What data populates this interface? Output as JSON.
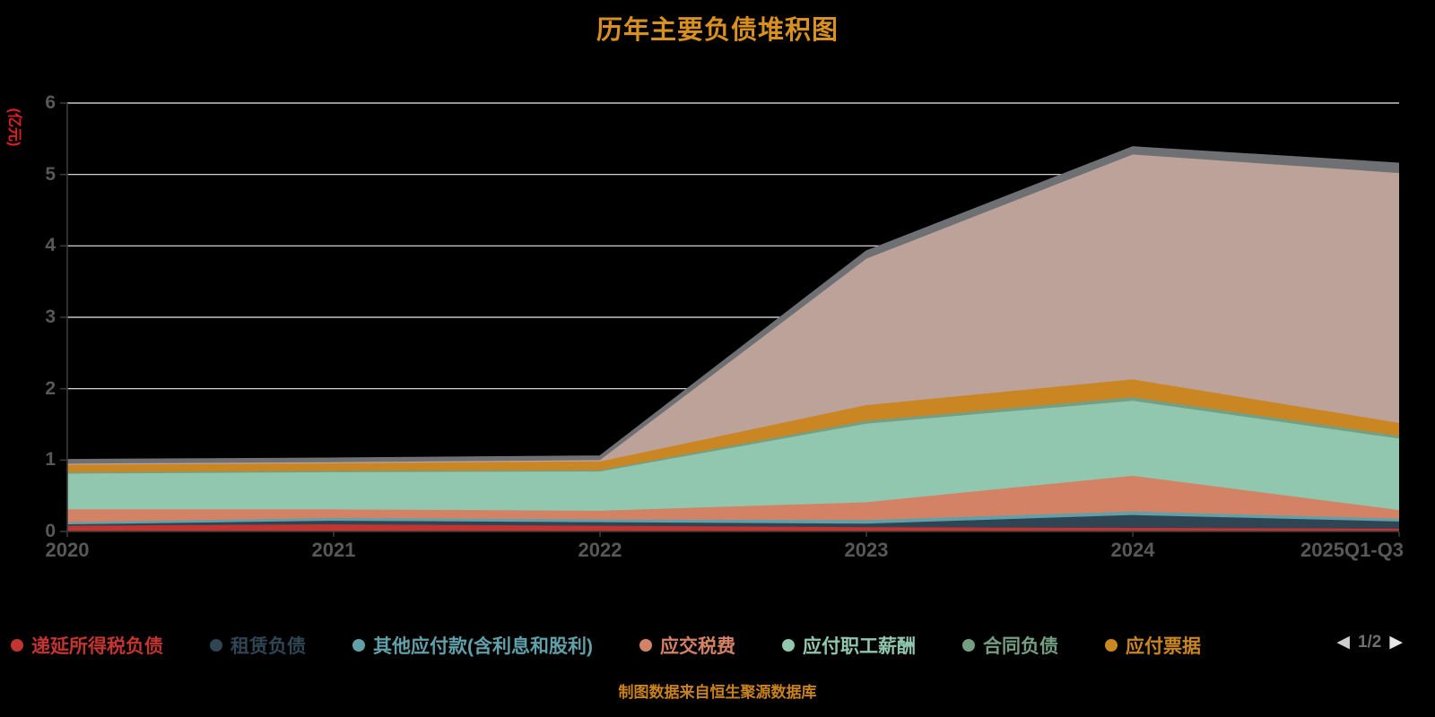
{
  "title": "历年主要负债堆积图",
  "caption": "制图数据来自恒生聚源数据库",
  "colors": {
    "background": "#000000",
    "title": "#d89020",
    "caption": "#c8821e",
    "axis_label": "#585858",
    "grid_line": "#ececec",
    "axis_line": "#3a3a3a",
    "y_axis_name": "#e02020"
  },
  "y_axis": {
    "name": "(亿元)",
    "ticks": [
      "0",
      "1",
      "2",
      "3",
      "4",
      "5",
      "6"
    ],
    "min": 0,
    "max": 6
  },
  "x_axis": {
    "categories": [
      "2020",
      "2021",
      "2022",
      "2023",
      "2024",
      "2025Q1-Q3"
    ]
  },
  "legend": {
    "page_text": "1/2",
    "prev_icon": "◀",
    "next_icon": "▶",
    "items": [
      {
        "label": "递延所得税负债",
        "color": "#c23531"
      },
      {
        "label": "租赁负债",
        "color": "#2f4554"
      },
      {
        "label": "其他应付款(含利息和股利)",
        "color": "#61a0a8"
      },
      {
        "label": "应交税费",
        "color": "#d48265"
      },
      {
        "label": "应付职工薪酬",
        "color": "#91c7ae"
      },
      {
        "label": "合同负债",
        "color": "#749f83"
      },
      {
        "label": "应付票据",
        "color": "#ca8622"
      }
    ]
  },
  "chart_data": {
    "type": "area",
    "stacked": true,
    "title": "历年主要负债堆积图",
    "xlabel": "",
    "ylabel": "(亿元)",
    "ylim": [
      0,
      6
    ],
    "grid": true,
    "legend_position": "bottom",
    "x": [
      "2020",
      "2021",
      "2022",
      "2023",
      "2024",
      "2025Q1-Q3"
    ],
    "series": [
      {
        "name": "递延所得税负债",
        "color": "#c23531",
        "values": [
          0.08,
          0.1,
          0.08,
          0.06,
          0.05,
          0.04
        ]
      },
      {
        "name": "租赁负债",
        "color": "#2f4554",
        "values": [
          0.02,
          0.05,
          0.05,
          0.05,
          0.18,
          0.1
        ]
      },
      {
        "name": "其他应付款(含利息和股利)",
        "color": "#61a0a8",
        "values": [
          0.03,
          0.04,
          0.04,
          0.05,
          0.05,
          0.04
        ]
      },
      {
        "name": "应交税费",
        "color": "#d48265",
        "values": [
          0.18,
          0.12,
          0.12,
          0.25,
          0.5,
          0.12
        ]
      },
      {
        "name": "应付职工薪酬",
        "color": "#91c7ae",
        "values": [
          0.5,
          0.52,
          0.55,
          1.1,
          1.05,
          1.0
        ]
      },
      {
        "name": "合同负债",
        "color": "#749f83",
        "values": [
          0.02,
          0.02,
          0.02,
          0.04,
          0.05,
          0.04
        ]
      },
      {
        "name": "应付票据",
        "color": "#ca8622",
        "values": [
          0.12,
          0.12,
          0.12,
          0.22,
          0.25,
          0.18
        ]
      },
      {
        "name": "",
        "color": "#bda29a",
        "values": [
          0.0,
          0.0,
          0.02,
          2.05,
          3.15,
          3.5
        ]
      },
      {
        "name": "",
        "color": "#6e7074",
        "values": [
          0.05,
          0.05,
          0.05,
          0.1,
          0.1,
          0.13
        ]
      }
    ]
  }
}
